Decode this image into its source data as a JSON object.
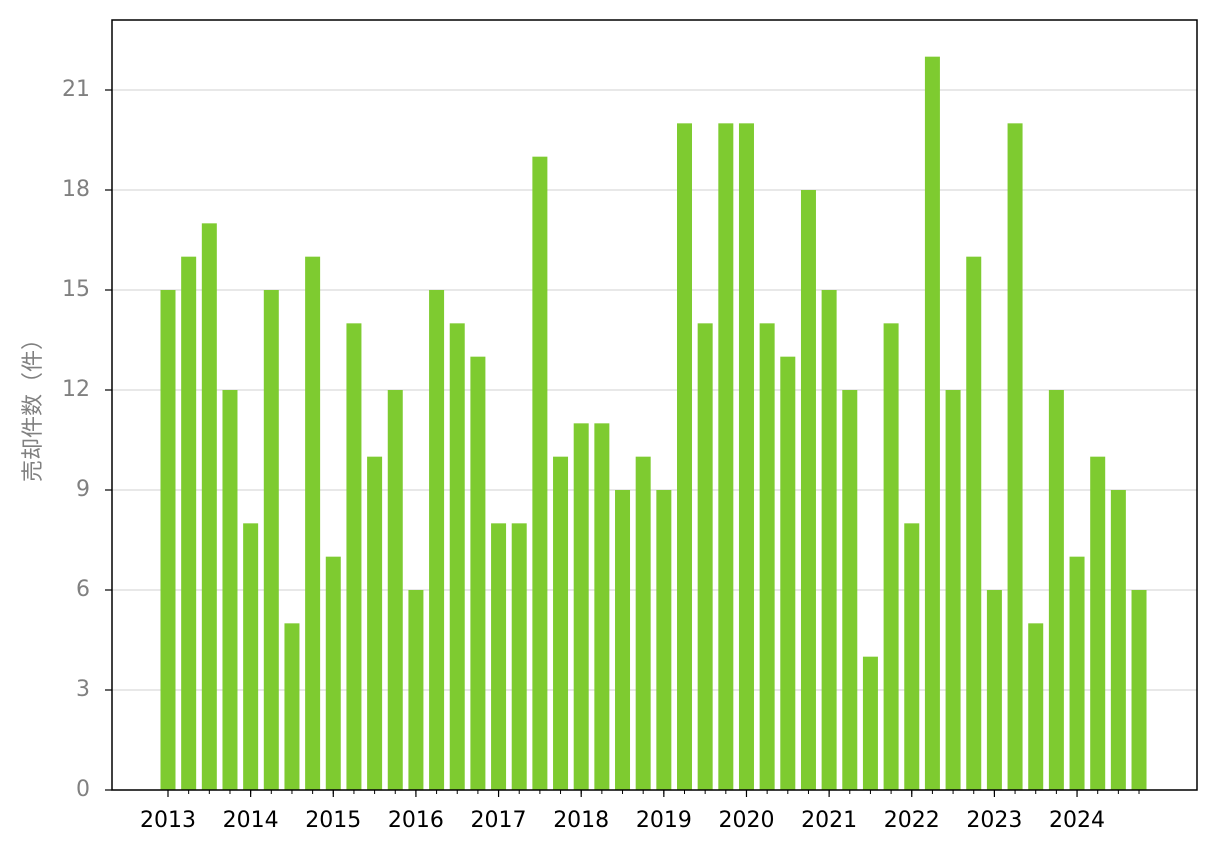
{
  "chart_data": {
    "type": "bar",
    "y_label": "売却件数（件）",
    "categories": [
      "2013",
      null,
      null,
      null,
      "2014",
      null,
      null,
      null,
      "2015",
      null,
      null,
      null,
      "2016",
      null,
      null,
      null,
      "2017",
      null,
      null,
      null,
      "2018",
      null,
      null,
      null,
      "2019",
      null,
      null,
      null,
      "2020",
      null,
      null,
      null,
      "2021",
      null,
      null,
      null,
      "2022",
      null,
      null,
      null,
      "2023",
      null,
      null,
      null,
      "2024",
      null,
      null,
      null
    ],
    "values": [
      15,
      16,
      17,
      12,
      8,
      15,
      5,
      16,
      7,
      14,
      10,
      12,
      6,
      15,
      14,
      13,
      8,
      8,
      19,
      10,
      11,
      11,
      9,
      10,
      9,
      20,
      14,
      20,
      20,
      14,
      13,
      18,
      15,
      12,
      4,
      14,
      8,
      22,
      12,
      16,
      6,
      20,
      5,
      12,
      7,
      10,
      9,
      6
    ],
    "color": "#7ecb30",
    "ylim": [
      0,
      23.1
    ],
    "yticks": [
      0,
      3,
      6,
      9,
      12,
      15,
      18,
      21
    ],
    "grid": true
  }
}
